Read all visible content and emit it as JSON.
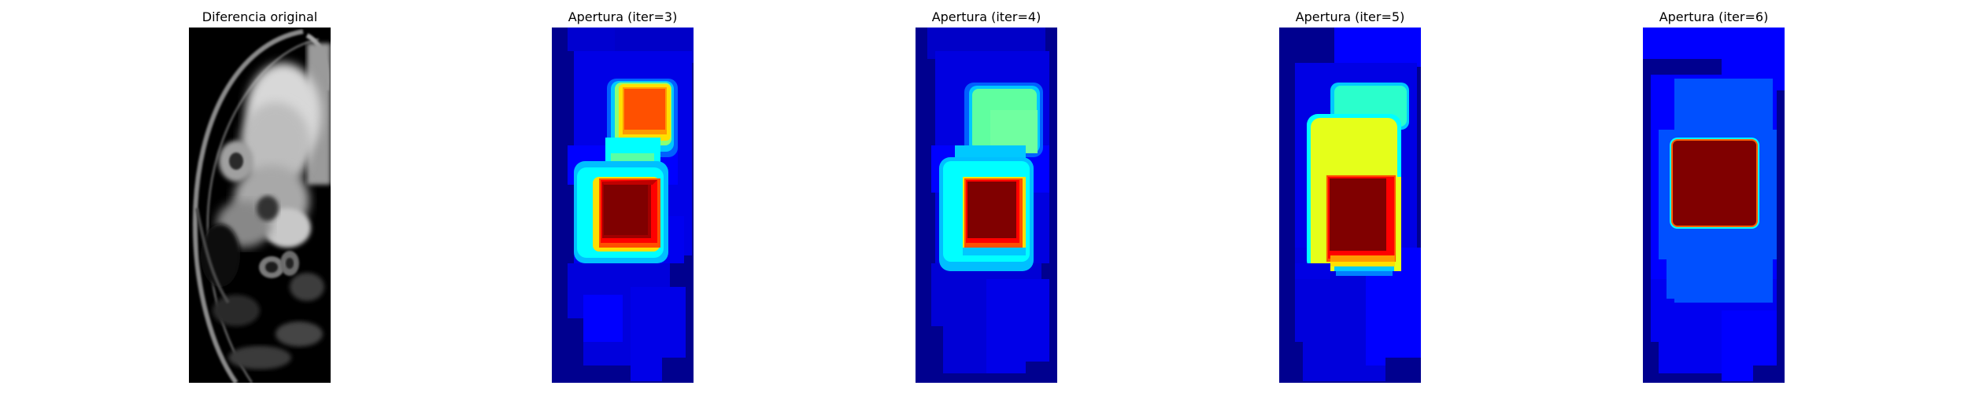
{
  "figure": {
    "panels": [
      {
        "title": "Diferencia original",
        "kind": "grayscale-image"
      },
      {
        "title": "Apertura (iter=3)",
        "kind": "jet-heatmap"
      },
      {
        "title": "Apertura (iter=4)",
        "kind": "jet-heatmap"
      },
      {
        "title": "Apertura (iter=5)",
        "kind": "jet-heatmap"
      },
      {
        "title": "Apertura (iter=6)",
        "kind": "jet-heatmap"
      }
    ],
    "colormap": "jet",
    "colors": {
      "background_navy": "#00008f",
      "blue": "#0000ff",
      "mid_blue": "#0050ff",
      "cyan": "#00ffff",
      "green": "#60ff9f",
      "yellow": "#e5ff1a",
      "orange": "#ff5000",
      "red": "#ff0000",
      "dark_red": "#800000"
    }
  }
}
